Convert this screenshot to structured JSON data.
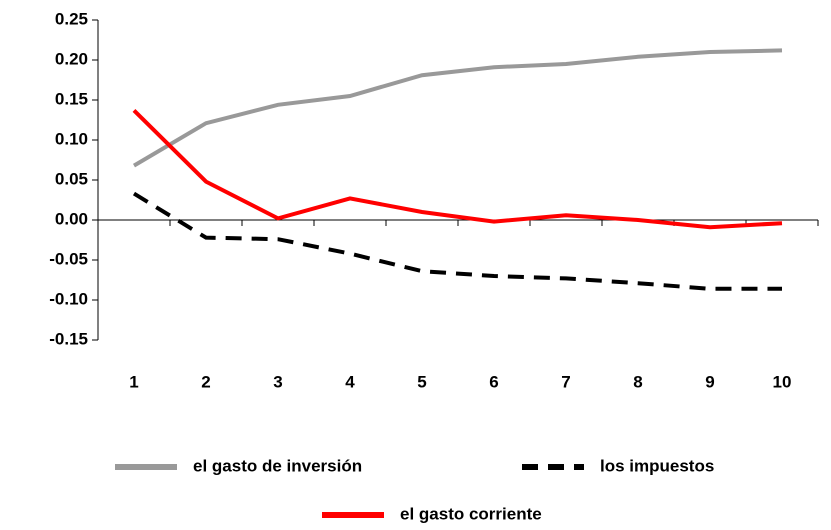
{
  "chart_data": {
    "type": "line",
    "categories": [
      "1",
      "2",
      "3",
      "4",
      "5",
      "6",
      "7",
      "8",
      "9",
      "10"
    ],
    "series": [
      {
        "name": "el gasto de inversión",
        "color": "#999999",
        "line_style": "solid",
        "values": [
          0.068,
          0.121,
          0.144,
          0.155,
          0.181,
          0.191,
          0.195,
          0.204,
          0.21,
          0.212
        ]
      },
      {
        "name": "los impuestos",
        "color": "#000000",
        "line_style": "dashed",
        "values": [
          0.033,
          -0.022,
          -0.024,
          -0.042,
          -0.064,
          -0.07,
          -0.073,
          -0.079,
          -0.086,
          -0.086
        ]
      },
      {
        "name": "el gasto corriente",
        "color": "#ff0000",
        "line_style": "solid",
        "values": [
          0.137,
          0.048,
          0.002,
          0.027,
          0.01,
          -0.002,
          0.006,
          0.0,
          -0.009,
          -0.004
        ]
      }
    ],
    "ylim": [
      -0.15,
      0.25
    ],
    "yticks": [
      0.25,
      {
        "value": 0.2,
        "label": "0.20"
      },
      0.15,
      {
        "value": 0.1,
        "label": "0.10"
      },
      0.05,
      {
        "value": 0,
        "label": "0.00"
      },
      -0.05,
      {
        "value": -0.1,
        "label": "-0.10"
      },
      -0.15
    ],
    "grid": false,
    "legend_position": "bottom"
  }
}
